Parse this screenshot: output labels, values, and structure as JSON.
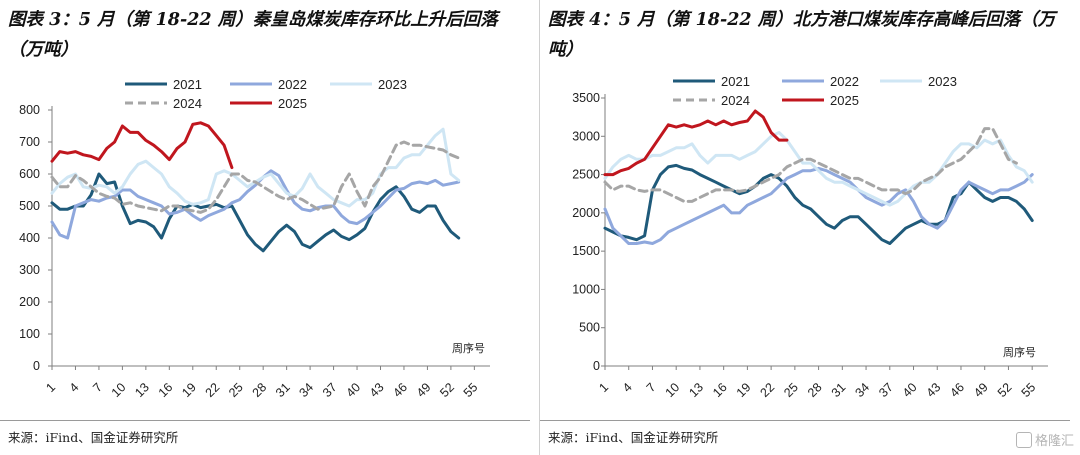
{
  "charts": [
    {
      "title": "图表 3：5 月（第 18-22 周）秦皇岛煤炭库存环比上升后回落（万吨）",
      "source": "来源：iFind、国金证券研究所",
      "x_note": "周序号"
    },
    {
      "title": "图表 4：5 月（第 18-22 周）北方港口煤炭库存高峰后回落（万吨）",
      "source": "来源：iFind、国金证券研究所",
      "x_note": "周序号"
    }
  ],
  "watermark": "格隆汇",
  "chart_data": [
    {
      "type": "line",
      "x_ticks": [
        "1",
        "4",
        "7",
        "10",
        "13",
        "16",
        "19",
        "22",
        "25",
        "28",
        "31",
        "34",
        "37",
        "40",
        "43",
        "46",
        "49",
        "52",
        "55"
      ],
      "xlim": [
        1,
        57
      ],
      "ylim": [
        0,
        800
      ],
      "y_ticks": [
        "0",
        "100",
        "200",
        "300",
        "400",
        "500",
        "600",
        "700",
        "800"
      ],
      "legend_position": "top",
      "grid": false,
      "series": [
        {
          "name": "2021",
          "color": "#1f5a7a",
          "dash": "",
          "values": [
            510,
            490,
            490,
            500,
            500,
            535,
            600,
            570,
            575,
            500,
            445,
            455,
            450,
            435,
            400,
            460,
            500,
            495,
            505,
            495,
            500,
            505,
            495,
            500,
            455,
            410,
            380,
            360,
            390,
            420,
            440,
            420,
            380,
            370,
            390,
            410,
            425,
            405,
            395,
            410,
            430,
            480,
            520,
            545,
            560,
            530,
            490,
            480,
            500,
            500,
            455,
            420,
            400
          ]
        },
        {
          "name": "2022",
          "color": "#8fa8dd",
          "dash": "",
          "values": [
            450,
            410,
            400,
            500,
            510,
            520,
            515,
            525,
            530,
            550,
            550,
            530,
            520,
            510,
            500,
            475,
            480,
            490,
            470,
            455,
            470,
            480,
            490,
            510,
            520,
            545,
            565,
            590,
            610,
            595,
            550,
            510,
            490,
            485,
            495,
            500,
            500,
            470,
            450,
            445,
            460,
            480,
            500,
            525,
            550,
            555,
            570,
            575,
            570,
            580,
            565,
            570,
            575
          ]
        },
        {
          "name": "2023",
          "color": "#cfe6f4",
          "dash": "",
          "values": [
            540,
            570,
            590,
            600,
            560,
            555,
            565,
            560,
            540,
            560,
            600,
            630,
            640,
            620,
            600,
            560,
            540,
            515,
            505,
            510,
            520,
            600,
            610,
            600,
            580,
            560,
            575,
            590,
            600,
            570,
            540,
            530,
            555,
            600,
            560,
            540,
            520,
            510,
            500,
            520,
            520,
            540,
            600,
            620,
            620,
            650,
            660,
            660,
            690,
            720,
            740,
            600,
            580
          ]
        },
        {
          "name": "2024",
          "color": "#a6a6a6",
          "dash": "8,5",
          "values": [
            590,
            560,
            560,
            595,
            580,
            560,
            540,
            530,
            525,
            505,
            510,
            500,
            495,
            490,
            485,
            500,
            500,
            490,
            485,
            480,
            490,
            520,
            560,
            600,
            600,
            580,
            575,
            560,
            545,
            530,
            520,
            530,
            520,
            505,
            490,
            495,
            500,
            560,
            600,
            545,
            500,
            560,
            590,
            640,
            690,
            700,
            690,
            690,
            685,
            680,
            675,
            660,
            650
          ]
        },
        {
          "name": "2025",
          "color": "#c0161e",
          "dash": "",
          "values": [
            640,
            670,
            665,
            670,
            660,
            655,
            645,
            680,
            700,
            750,
            730,
            730,
            705,
            690,
            670,
            645,
            680,
            700,
            755,
            760,
            750,
            720,
            690,
            620
          ]
        }
      ]
    },
    {
      "type": "line",
      "x_ticks": [
        "1",
        "4",
        "7",
        "10",
        "13",
        "16",
        "19",
        "22",
        "25",
        "28",
        "31",
        "34",
        "37",
        "40",
        "43",
        "46",
        "49",
        "52",
        "55"
      ],
      "xlim": [
        1,
        57
      ],
      "ylim": [
        0,
        3500
      ],
      "y_ticks": [
        "0",
        "500",
        "1000",
        "1500",
        "2000",
        "2500",
        "3000",
        "3500"
      ],
      "legend_position": "top",
      "grid": false,
      "series": [
        {
          "name": "2021",
          "color": "#1f5a7a",
          "dash": "",
          "values": [
            1800,
            1750,
            1700,
            1680,
            1650,
            1700,
            2300,
            2500,
            2600,
            2620,
            2580,
            2560,
            2500,
            2450,
            2400,
            2350,
            2300,
            2250,
            2280,
            2350,
            2450,
            2500,
            2450,
            2350,
            2200,
            2100,
            2050,
            1950,
            1850,
            1800,
            1900,
            1950,
            1950,
            1850,
            1750,
            1650,
            1600,
            1700,
            1800,
            1850,
            1900,
            1850,
            1850,
            1900,
            2200,
            2250,
            2400,
            2300,
            2200,
            2150,
            2200,
            2200,
            2150,
            2050,
            1900
          ]
        },
        {
          "name": "2022",
          "color": "#8fa8dd",
          "dash": "",
          "values": [
            2050,
            1800,
            1700,
            1600,
            1600,
            1620,
            1600,
            1650,
            1750,
            1800,
            1850,
            1900,
            1950,
            2000,
            2050,
            2100,
            2000,
            2000,
            2100,
            2150,
            2200,
            2250,
            2350,
            2450,
            2500,
            2550,
            2550,
            2580,
            2550,
            2500,
            2450,
            2400,
            2300,
            2200,
            2150,
            2100,
            2150,
            2250,
            2300,
            2150,
            1950,
            1850,
            1800,
            1900,
            2100,
            2300,
            2400,
            2350,
            2300,
            2250,
            2300,
            2300,
            2350,
            2400,
            2500
          ]
        },
        {
          "name": "2023",
          "color": "#cfe6f4",
          "dash": "",
          "values": [
            2450,
            2600,
            2700,
            2750,
            2700,
            2700,
            2750,
            2750,
            2800,
            2850,
            2850,
            2900,
            2750,
            2650,
            2750,
            2750,
            2750,
            2700,
            2750,
            2800,
            2900,
            3000,
            3050,
            2950,
            2800,
            2650,
            2650,
            2550,
            2450,
            2400,
            2400,
            2350,
            2300,
            2250,
            2200,
            2150,
            2100,
            2150,
            2250,
            2350,
            2400,
            2400,
            2500,
            2650,
            2800,
            2900,
            2900,
            2850,
            2950,
            2900,
            2950,
            2750,
            2600,
            2550,
            2400
          ]
        },
        {
          "name": "2024",
          "color": "#a6a6a6",
          "dash": "8,5",
          "values": [
            2400,
            2300,
            2350,
            2350,
            2300,
            2280,
            2300,
            2300,
            2250,
            2200,
            2150,
            2150,
            2200,
            2250,
            2300,
            2300,
            2300,
            2280,
            2300,
            2350,
            2400,
            2450,
            2500,
            2600,
            2650,
            2700,
            2700,
            2650,
            2600,
            2550,
            2500,
            2450,
            2450,
            2400,
            2350,
            2300,
            2300,
            2300,
            2250,
            2300,
            2400,
            2450,
            2500,
            2600,
            2650,
            2700,
            2800,
            2900,
            3100,
            3100,
            2900,
            2700,
            2650
          ]
        },
        {
          "name": "2025",
          "color": "#c0161e",
          "dash": "",
          "values": [
            2500,
            2500,
            2550,
            2580,
            2650,
            2700,
            2850,
            3000,
            3150,
            3120,
            3150,
            3120,
            3150,
            3200,
            3150,
            3200,
            3150,
            3180,
            3200,
            3330,
            3250,
            3050,
            2950,
            2950
          ]
        }
      ]
    }
  ]
}
